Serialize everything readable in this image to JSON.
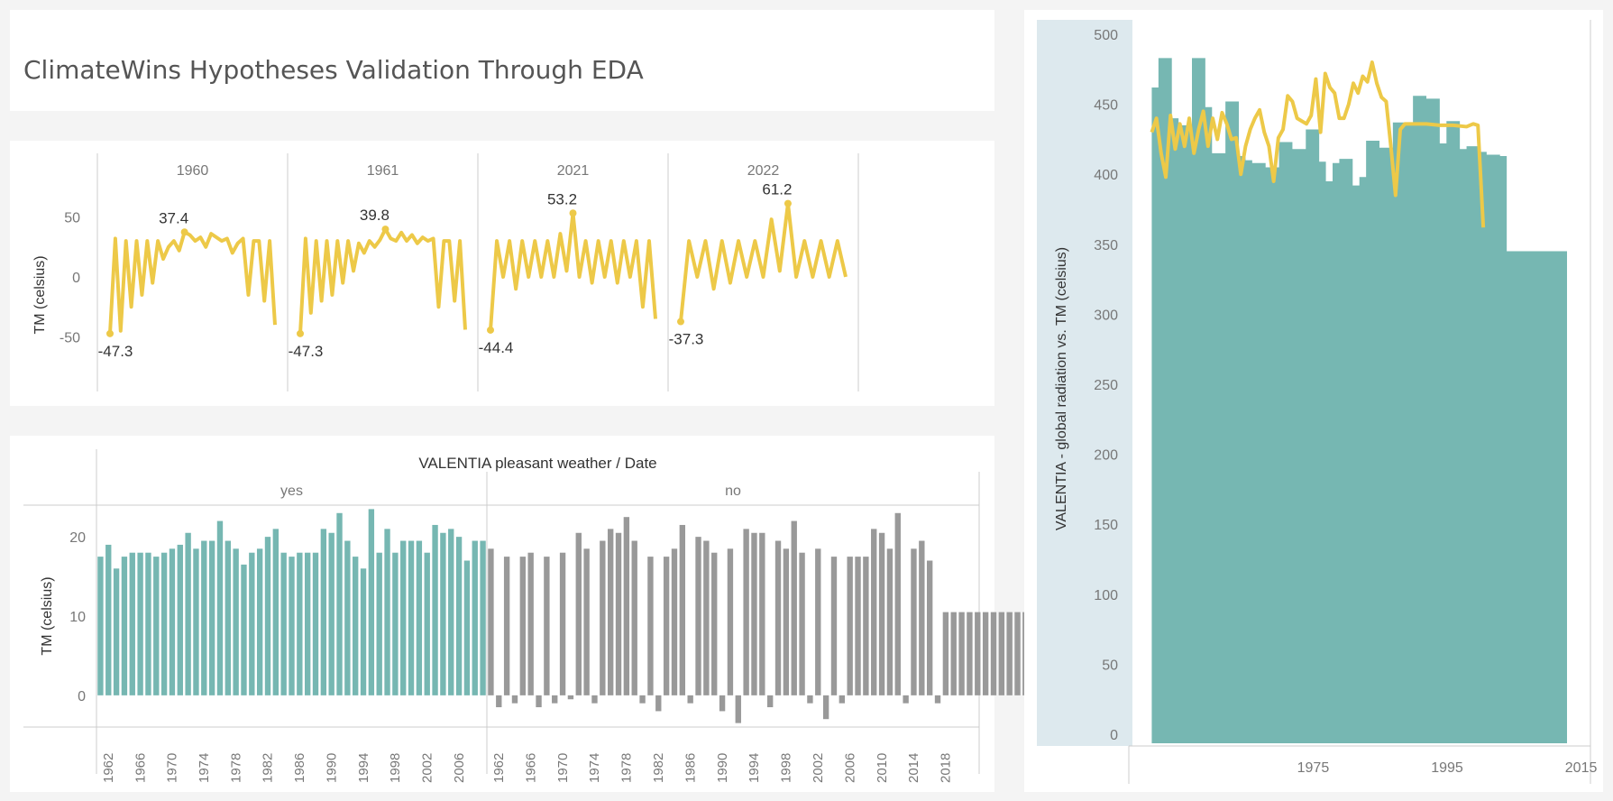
{
  "dashboard": {
    "title": "ClimateWins Hypotheses Validation Through EDA"
  },
  "chart_data": [
    {
      "id": "monthly-tm-lines",
      "type": "line",
      "ylabel": "TM (celsius)",
      "yticks": [
        -50,
        0,
        50
      ],
      "ylim": [
        -70,
        85
      ],
      "color": "#edc948",
      "panels": [
        {
          "label": "1960",
          "values": [
            -47.3,
            32,
            -45,
            30,
            -25,
            30,
            -15,
            30,
            -5,
            30,
            15,
            25,
            30,
            22,
            37.4,
            35,
            30,
            33,
            25,
            36,
            33,
            30,
            32,
            20,
            28,
            32,
            -15,
            30,
            30,
            -20,
            30,
            -40
          ],
          "high": {
            "index": 14,
            "label": "37.4"
          },
          "low": {
            "index": 0,
            "label": "-47.3"
          }
        },
        {
          "label": "1961",
          "values": [
            -47.3,
            32,
            -30,
            30,
            -20,
            30,
            -15,
            30,
            -5,
            30,
            5,
            28,
            20,
            30,
            25,
            31,
            39.8,
            32,
            30,
            37,
            30,
            35,
            28,
            33,
            30,
            32,
            -25,
            30,
            30,
            -20,
            30,
            -44
          ],
          "high": {
            "index": 16,
            "label": "39.8"
          },
          "low": {
            "index": 0,
            "label": "-47.3"
          }
        },
        {
          "label": "2021",
          "values": [
            -44.4,
            30,
            0,
            30,
            -10,
            30,
            0,
            30,
            0,
            30,
            0,
            36,
            5,
            53.2,
            0,
            30,
            -5,
            30,
            0,
            30,
            -5,
            30,
            0,
            30,
            -25,
            30,
            -35
          ],
          "high": {
            "index": 13,
            "label": "53.2"
          },
          "low": {
            "index": 0,
            "label": "-44.4"
          }
        },
        {
          "label": "2022",
          "values": [
            -37.3,
            30,
            0,
            30,
            -10,
            30,
            -5,
            30,
            0,
            30,
            0,
            48,
            5,
            61.2,
            0,
            30,
            0,
            30,
            0,
            30,
            0
          ],
          "high": {
            "index": 13,
            "label": "61.2"
          },
          "low": {
            "index": 0,
            "label": "-37.3"
          }
        }
      ]
    },
    {
      "id": "pleasant-weather-bars",
      "type": "bar",
      "title": "VALENTIA pleasant weather / Date",
      "ylabel": "TM (celsius)",
      "yticks": [
        0,
        10,
        20
      ],
      "ylim": [
        -4,
        24
      ],
      "panels": [
        {
          "label": "yes",
          "color": "#76b7b2",
          "xticks": [
            "1962",
            "1966",
            "1970",
            "1974",
            "1978",
            "1982",
            "1986",
            "1990",
            "1994",
            "1998",
            "2002",
            "2006"
          ],
          "values": [
            17.5,
            19,
            16,
            17.5,
            18,
            18,
            18,
            17.5,
            18,
            18.5,
            19,
            20.5,
            18.5,
            19.5,
            19.5,
            22,
            19.5,
            18.5,
            16.5,
            18,
            18.5,
            20,
            21,
            18,
            17.5,
            18,
            18,
            18,
            21,
            20.5,
            23,
            19.5,
            17.5,
            16,
            23.5,
            18,
            21,
            18,
            19.5,
            19.5,
            19.5,
            18,
            21.5,
            20.5,
            21,
            20,
            17,
            19.5,
            19.5
          ]
        },
        {
          "label": "no",
          "color": "#999999",
          "xticks": [
            "1962",
            "1966",
            "1970",
            "1974",
            "1978",
            "1982",
            "1986",
            "1990",
            "1994",
            "1998",
            "2002",
            "2006",
            "2010",
            "2014",
            "2018"
          ],
          "values": [
            18.5,
            -1.5,
            17.5,
            -1,
            17.5,
            18,
            -1.5,
            17.5,
            -1,
            18,
            -0.5,
            20.5,
            18.5,
            -1,
            19.5,
            21,
            20.5,
            22.5,
            19.5,
            -1,
            17.5,
            -2,
            17.5,
            18.5,
            21.5,
            -1,
            20,
            19.5,
            18,
            -2,
            18.5,
            -3.5,
            21,
            20.5,
            20.5,
            -1.5,
            19.5,
            18.5,
            22,
            18,
            -1,
            18.5,
            -3,
            17.5,
            -1,
            17.5,
            17.5,
            17.5,
            21,
            20.5,
            18.5,
            23,
            -1,
            18.5,
            19.5,
            17,
            -1,
            10.5,
            10.5,
            10.5,
            10.5,
            10.5,
            10.5,
            10.5,
            10.5,
            10.5,
            10.5,
            10.5,
            10.5,
            10.5,
            10.5,
            10.5,
            10.5
          ]
        }
      ]
    },
    {
      "id": "radiation-vs-tm",
      "type": "area",
      "ylabel": "VALENTIA - global radiation vs. TM (celsius)",
      "yticks": [
        0,
        50,
        100,
        150,
        200,
        250,
        300,
        350,
        400,
        450,
        500
      ],
      "ylim": [
        0,
        500
      ],
      "xticks": [
        "1975",
        "1995",
        "2015"
      ],
      "xlim": [
        1960,
        2023
      ],
      "bar_color": "#76b7b2",
      "line_color": "#edc948",
      "bars": [
        {
          "x": 1961,
          "y": 462
        },
        {
          "x": 1962,
          "y": 483
        },
        {
          "x": 1964,
          "y": 440
        },
        {
          "x": 1965,
          "y": 435
        },
        {
          "x": 1967,
          "y": 483
        },
        {
          "x": 1969,
          "y": 448
        },
        {
          "x": 1970,
          "y": 415
        },
        {
          "x": 1972,
          "y": 452
        },
        {
          "x": 1974,
          "y": 413
        },
        {
          "x": 1975,
          "y": 410
        },
        {
          "x": 1976,
          "y": 408
        },
        {
          "x": 1978,
          "y": 405
        },
        {
          "x": 1980,
          "y": 423
        },
        {
          "x": 1982,
          "y": 418
        },
        {
          "x": 1984,
          "y": 432
        },
        {
          "x": 1986,
          "y": 409
        },
        {
          "x": 1987,
          "y": 395
        },
        {
          "x": 1988,
          "y": 408
        },
        {
          "x": 1989,
          "y": 411
        },
        {
          "x": 1991,
          "y": 392
        },
        {
          "x": 1992,
          "y": 398
        },
        {
          "x": 1993,
          "y": 424
        },
        {
          "x": 1995,
          "y": 419
        },
        {
          "x": 1997,
          "y": 437
        },
        {
          "x": 1999,
          "y": 437
        },
        {
          "x": 2000,
          "y": 456
        },
        {
          "x": 2002,
          "y": 454
        },
        {
          "x": 2004,
          "y": 422
        },
        {
          "x": 2005,
          "y": 438
        },
        {
          "x": 2007,
          "y": 418
        },
        {
          "x": 2008,
          "y": 420
        },
        {
          "x": 2010,
          "y": 416
        },
        {
          "x": 2011,
          "y": 414
        },
        {
          "x": 2013,
          "y": 413
        },
        {
          "x": 2014,
          "y": 345
        }
      ],
      "line": [
        {
          "x": 1961,
          "y": 430
        },
        {
          "x": 1961.7,
          "y": 440
        },
        {
          "x": 1962.4,
          "y": 415
        },
        {
          "x": 1963.1,
          "y": 398
        },
        {
          "x": 1963.8,
          "y": 442
        },
        {
          "x": 1964.5,
          "y": 418
        },
        {
          "x": 1965.2,
          "y": 436
        },
        {
          "x": 1965.9,
          "y": 420
        },
        {
          "x": 1966.6,
          "y": 440
        },
        {
          "x": 1967.3,
          "y": 415
        },
        {
          "x": 1968,
          "y": 432
        },
        {
          "x": 1968.7,
          "y": 445
        },
        {
          "x": 1969.4,
          "y": 420
        },
        {
          "x": 1970.1,
          "y": 440
        },
        {
          "x": 1970.8,
          "y": 425
        },
        {
          "x": 1971.5,
          "y": 444
        },
        {
          "x": 1972.2,
          "y": 436
        },
        {
          "x": 1972.9,
          "y": 425
        },
        {
          "x": 1973.6,
          "y": 426
        },
        {
          "x": 1974.3,
          "y": 400
        },
        {
          "x": 1975,
          "y": 420
        },
        {
          "x": 1975.7,
          "y": 432
        },
        {
          "x": 1976.4,
          "y": 440
        },
        {
          "x": 1977.1,
          "y": 446
        },
        {
          "x": 1977.8,
          "y": 430
        },
        {
          "x": 1978.5,
          "y": 420
        },
        {
          "x": 1979.2,
          "y": 395
        },
        {
          "x": 1979.9,
          "y": 426
        },
        {
          "x": 1980.6,
          "y": 432
        },
        {
          "x": 1981.3,
          "y": 456
        },
        {
          "x": 1982,
          "y": 452
        },
        {
          "x": 1982.7,
          "y": 440
        },
        {
          "x": 1983.4,
          "y": 438
        },
        {
          "x": 1984.1,
          "y": 436
        },
        {
          "x": 1984.8,
          "y": 442
        },
        {
          "x": 1985.5,
          "y": 468
        },
        {
          "x": 1986.2,
          "y": 430
        },
        {
          "x": 1986.9,
          "y": 472
        },
        {
          "x": 1987.6,
          "y": 462
        },
        {
          "x": 1988.3,
          "y": 458
        },
        {
          "x": 1989,
          "y": 440
        },
        {
          "x": 1989.7,
          "y": 440
        },
        {
          "x": 1990.4,
          "y": 450
        },
        {
          "x": 1991.1,
          "y": 465
        },
        {
          "x": 1991.8,
          "y": 458
        },
        {
          "x": 1992.5,
          "y": 470
        },
        {
          "x": 1993.2,
          "y": 466
        },
        {
          "x": 1993.9,
          "y": 480
        },
        {
          "x": 1994.6,
          "y": 465
        },
        {
          "x": 1995.3,
          "y": 455
        },
        {
          "x": 1996,
          "y": 452
        },
        {
          "x": 1996.7,
          "y": 420
        },
        {
          "x": 1997.4,
          "y": 385
        },
        {
          "x": 1998.1,
          "y": 432
        },
        {
          "x": 1998.8,
          "y": 436
        },
        {
          "x": 2000,
          "y": 436
        },
        {
          "x": 2002,
          "y": 436
        },
        {
          "x": 2004,
          "y": 435
        },
        {
          "x": 2006,
          "y": 435
        },
        {
          "x": 2008,
          "y": 434
        },
        {
          "x": 2009,
          "y": 436
        },
        {
          "x": 2009.7,
          "y": 435
        },
        {
          "x": 2010.5,
          "y": 362
        }
      ]
    }
  ]
}
